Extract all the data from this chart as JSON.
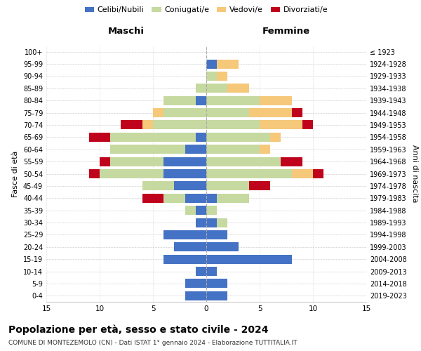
{
  "age_groups": [
    "0-4",
    "5-9",
    "10-14",
    "15-19",
    "20-24",
    "25-29",
    "30-34",
    "35-39",
    "40-44",
    "45-49",
    "50-54",
    "55-59",
    "60-64",
    "65-69",
    "70-74",
    "75-79",
    "80-84",
    "85-89",
    "90-94",
    "95-99",
    "100+"
  ],
  "birth_years": [
    "2019-2023",
    "2014-2018",
    "2009-2013",
    "2004-2008",
    "1999-2003",
    "1994-1998",
    "1989-1993",
    "1984-1988",
    "1979-1983",
    "1974-1978",
    "1969-1973",
    "1964-1968",
    "1959-1963",
    "1954-1958",
    "1949-1953",
    "1944-1948",
    "1939-1943",
    "1934-1938",
    "1929-1933",
    "1924-1928",
    "≤ 1923"
  ],
  "colors": {
    "celibi": "#4472C4",
    "coniugati": "#C6D9A0",
    "vedovi": "#F5C87A",
    "divorziati": "#C0031C"
  },
  "males": {
    "celibi": [
      2,
      2,
      1,
      4,
      3,
      4,
      1,
      1,
      2,
      3,
      4,
      4,
      2,
      1,
      0,
      0,
      1,
      0,
      0,
      0,
      0
    ],
    "coniugati": [
      0,
      0,
      0,
      0,
      0,
      0,
      0,
      1,
      2,
      3,
      6,
      5,
      7,
      8,
      5,
      4,
      3,
      1,
      0,
      0,
      0
    ],
    "vedovi": [
      0,
      0,
      0,
      0,
      0,
      0,
      0,
      0,
      0,
      0,
      0,
      0,
      0,
      0,
      1,
      1,
      0,
      0,
      0,
      0,
      0
    ],
    "divorziati": [
      0,
      0,
      0,
      0,
      0,
      0,
      0,
      0,
      2,
      0,
      1,
      1,
      0,
      2,
      2,
      0,
      0,
      0,
      0,
      0,
      0
    ]
  },
  "females": {
    "celibi": [
      2,
      2,
      1,
      8,
      3,
      2,
      1,
      0,
      1,
      0,
      0,
      0,
      0,
      0,
      0,
      0,
      0,
      0,
      0,
      1,
      0
    ],
    "coniugati": [
      0,
      0,
      0,
      0,
      0,
      0,
      1,
      1,
      3,
      4,
      8,
      7,
      5,
      6,
      5,
      4,
      5,
      2,
      1,
      0,
      0
    ],
    "vedovi": [
      0,
      0,
      0,
      0,
      0,
      0,
      0,
      0,
      0,
      0,
      2,
      0,
      1,
      1,
      4,
      4,
      3,
      2,
      1,
      2,
      0
    ],
    "divorziati": [
      0,
      0,
      0,
      0,
      0,
      0,
      0,
      0,
      0,
      2,
      1,
      2,
      0,
      0,
      1,
      1,
      0,
      0,
      0,
      0,
      0
    ]
  },
  "xlim": 15,
  "title": "Popolazione per età, sesso e stato civile - 2024",
  "subtitle": "COMUNE DI MONTEZEMOLO (CN) - Dati ISTAT 1° gennaio 2024 - Elaborazione TUTTITALIA.IT",
  "ylabel_left": "Fasce di età",
  "ylabel_right": "Anni di nascita",
  "xlabel_left": "Maschi",
  "xlabel_right": "Femmine",
  "background": "#FFFFFF",
  "grid_color": "#CCCCCC"
}
